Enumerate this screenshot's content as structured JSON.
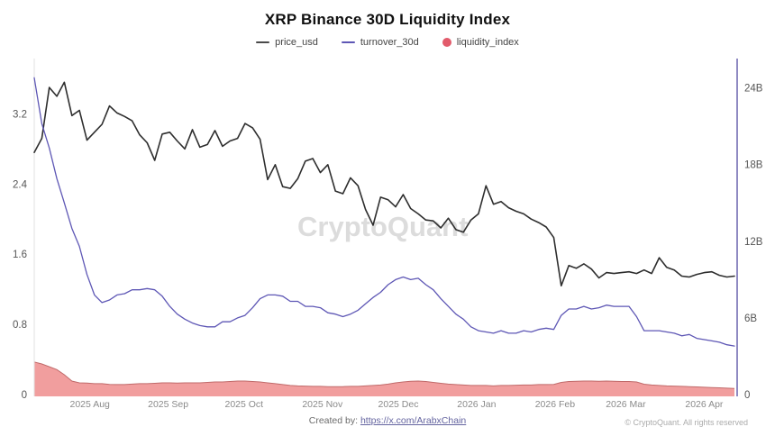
{
  "header": {
    "title": "XRP Binance 30D Liquidity Index"
  },
  "legend": [
    {
      "label": "price_usd",
      "swatch": "line",
      "color": "#4a4a4a"
    },
    {
      "label": "turnover_30d",
      "swatch": "line",
      "color": "#5e57b5"
    },
    {
      "label": "liquidity_index",
      "swatch": "dot",
      "color": "#e25b6b"
    }
  ],
  "watermark": "CryptoQuant",
  "footer": {
    "created_by_label": "Created by:",
    "created_by_link": "https://x.com/ArabxChain",
    "copyright": "© CryptoQuant. All rights reserved"
  },
  "chart_data": {
    "type": "line",
    "title": "XRP Binance 30D Liquidity Index",
    "x_range": {
      "start": "2025-07-10",
      "end": "2026-04-13"
    },
    "x_tick_labels": [
      {
        "label": "2025 Aug",
        "pos": 0.0794
      },
      {
        "label": "2025 Sep",
        "pos": 0.1913
      },
      {
        "label": "2025 Oct",
        "pos": 0.2996
      },
      {
        "label": "2025 Nov",
        "pos": 0.4116
      },
      {
        "label": "2025 Dec",
        "pos": 0.5199
      },
      {
        "label": "2026 Jan",
        "pos": 0.6318
      },
      {
        "label": "2026 Feb",
        "pos": 0.7437
      },
      {
        "label": "2026 Mar",
        "pos": 0.8448
      },
      {
        "label": "2026 Apr",
        "pos": 0.9567
      }
    ],
    "left_axis": {
      "title": "price_usd",
      "plot_max": 3.83,
      "axis_color": "#e2e2e2",
      "label_color": "#555555",
      "ticks": [
        {
          "label": "3.2",
          "value": 3.2
        },
        {
          "label": "2.4",
          "value": 2.4
        },
        {
          "label": "1.6",
          "value": 1.6
        },
        {
          "label": "0.8",
          "value": 0.8
        },
        {
          "label": "0",
          "value": 0
        }
      ]
    },
    "right_axis": {
      "title": "turnover_30d",
      "plot_max": 26.3,
      "axis_color": "#8f8ac2",
      "label_color": "#555555",
      "ticks": [
        {
          "label": "24B",
          "value": 24
        },
        {
          "label": "18B",
          "value": 18
        },
        {
          "label": "12B",
          "value": 12
        },
        {
          "label": "6B",
          "value": 6
        },
        {
          "label": "0",
          "value": 0
        }
      ]
    },
    "series": [
      {
        "name": "price_usd",
        "axis": "left",
        "style": "line",
        "color": "#2e2e2e",
        "width": 1.6,
        "values": [
          2.76,
          2.92,
          3.5,
          3.4,
          3.56,
          3.18,
          3.24,
          2.9,
          2.99,
          3.08,
          3.29,
          3.21,
          3.17,
          3.12,
          2.96,
          2.87,
          2.67,
          2.97,
          2.99,
          2.89,
          2.8,
          3.02,
          2.82,
          2.85,
          3.01,
          2.83,
          2.89,
          2.92,
          3.09,
          3.04,
          2.91,
          2.45,
          2.62,
          2.37,
          2.35,
          2.46,
          2.66,
          2.69,
          2.53,
          2.62,
          2.32,
          2.29,
          2.47,
          2.38,
          2.11,
          1.93,
          2.25,
          2.22,
          2.14,
          2.28,
          2.12,
          2.06,
          1.99,
          1.98,
          1.9,
          2.01,
          1.88,
          1.85,
          1.99,
          2.06,
          2.38,
          2.17,
          2.2,
          2.13,
          2.09,
          2.06,
          2.0,
          1.96,
          1.91,
          1.79,
          1.24,
          1.47,
          1.44,
          1.49,
          1.43,
          1.33,
          1.39,
          1.38,
          1.39,
          1.4,
          1.38,
          1.42,
          1.38,
          1.56,
          1.45,
          1.42,
          1.35,
          1.34,
          1.37,
          1.39,
          1.4,
          1.36,
          1.34,
          1.35
        ]
      },
      {
        "name": "turnover_30d",
        "axis": "right",
        "style": "line",
        "color": "#5e57b5",
        "width": 1.3,
        "values": [
          24.8,
          21.2,
          19.3,
          16.9,
          15.0,
          13.0,
          11.6,
          9.4,
          7.8,
          7.2,
          7.4,
          7.8,
          7.9,
          8.2,
          8.2,
          8.3,
          8.2,
          7.7,
          6.9,
          6.3,
          5.9,
          5.6,
          5.4,
          5.3,
          5.3,
          5.7,
          5.7,
          6.0,
          6.2,
          6.8,
          7.5,
          7.8,
          7.8,
          7.7,
          7.3,
          7.3,
          6.9,
          6.9,
          6.8,
          6.4,
          6.3,
          6.1,
          6.3,
          6.6,
          7.1,
          7.6,
          8.0,
          8.6,
          9.0,
          9.2,
          9.0,
          9.1,
          8.6,
          8.2,
          7.5,
          6.9,
          6.3,
          5.9,
          5.3,
          5.0,
          4.9,
          4.8,
          5.0,
          4.8,
          4.8,
          5.0,
          4.9,
          5.1,
          5.2,
          5.1,
          6.2,
          6.7,
          6.7,
          6.9,
          6.7,
          6.8,
          7.0,
          6.9,
          6.9,
          6.9,
          6.1,
          5.0,
          5.0,
          5.0,
          4.9,
          4.8,
          4.6,
          4.7,
          4.4,
          4.3,
          4.2,
          4.1,
          3.9,
          3.8
        ]
      },
      {
        "name": "liquidity_index",
        "axis": "right",
        "style": "area",
        "color": "#ef9494",
        "stroke": "#c06a6a",
        "width": 1,
        "values": [
          2.55,
          2.4,
          2.18,
          1.95,
          1.55,
          1.06,
          0.92,
          0.9,
          0.85,
          0.85,
          0.8,
          0.78,
          0.78,
          0.82,
          0.85,
          0.85,
          0.88,
          0.92,
          0.92,
          0.9,
          0.92,
          0.92,
          0.92,
          0.95,
          0.99,
          0.99,
          1.02,
          1.06,
          1.06,
          1.02,
          0.99,
          0.92,
          0.85,
          0.78,
          0.71,
          0.68,
          0.66,
          0.64,
          0.64,
          0.62,
          0.62,
          0.62,
          0.64,
          0.64,
          0.68,
          0.71,
          0.75,
          0.82,
          0.92,
          0.99,
          1.04,
          1.06,
          1.02,
          0.95,
          0.88,
          0.82,
          0.78,
          0.75,
          0.71,
          0.71,
          0.71,
          0.68,
          0.71,
          0.71,
          0.73,
          0.75,
          0.75,
          0.78,
          0.78,
          0.8,
          0.95,
          1.02,
          1.04,
          1.06,
          1.06,
          1.04,
          1.06,
          1.04,
          1.02,
          1.02,
          0.99,
          0.81,
          0.75,
          0.71,
          0.68,
          0.66,
          0.64,
          0.62,
          0.6,
          0.57,
          0.55,
          0.53,
          0.5,
          0.48
        ]
      }
    ]
  }
}
